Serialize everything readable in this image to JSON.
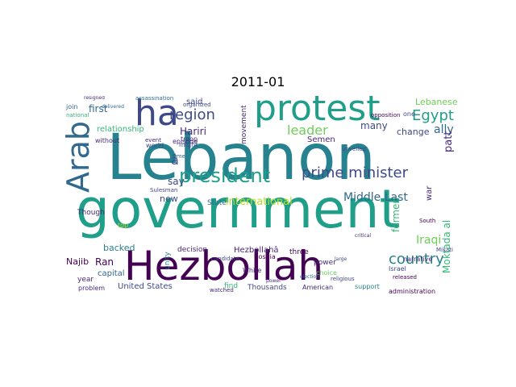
{
  "title": "2011-01",
  "palette": {
    "dark_purple": "#440154",
    "purple": "#482878",
    "indigo": "#3e4989",
    "blue": "#31688e",
    "teal": "#26828e",
    "sea_green": "#1f9e89",
    "green": "#35b779",
    "light_green": "#6ece58",
    "lime": "#b5de2b",
    "yellow": "#fde725"
  },
  "words": [
    "Lebanon",
    "government",
    "Hezbollah",
    "protest",
    "ha",
    "Arab",
    "president",
    "prime minister",
    "country",
    "Middle Last",
    "region",
    "Egypt",
    "leader",
    "international",
    "Iraqi",
    "Lebanese",
    "Hariri",
    "relationship",
    "first",
    "many",
    "Semen",
    "change",
    "ally",
    "former",
    "backed",
    "Ran",
    "Najib",
    "capital",
    "United States",
    "Thousands",
    "say",
    "new",
    "said",
    "movement",
    "troop",
    "Moktada al",
    "war",
    "patt",
    "â",
    "American",
    "support",
    "administration",
    "unity",
    "decision",
    "candidate",
    "State",
    "White",
    "power",
    "choice",
    "three",
    "episode",
    "time",
    "might",
    "world",
    "without",
    "Though",
    "year",
    "problem",
    "Hezbollahâ",
    "Bosnia",
    "Sulesman",
    "assassination",
    "organized",
    "national",
    "join",
    "top",
    "find",
    "narrative",
    "South",
    "Mikati",
    "Israel",
    "religious",
    "released",
    "watched",
    "event",
    "unveiled",
    "opposition",
    "one",
    "critical",
    "large",
    "power",
    "election",
    "resigned",
    "delivered"
  ]
}
